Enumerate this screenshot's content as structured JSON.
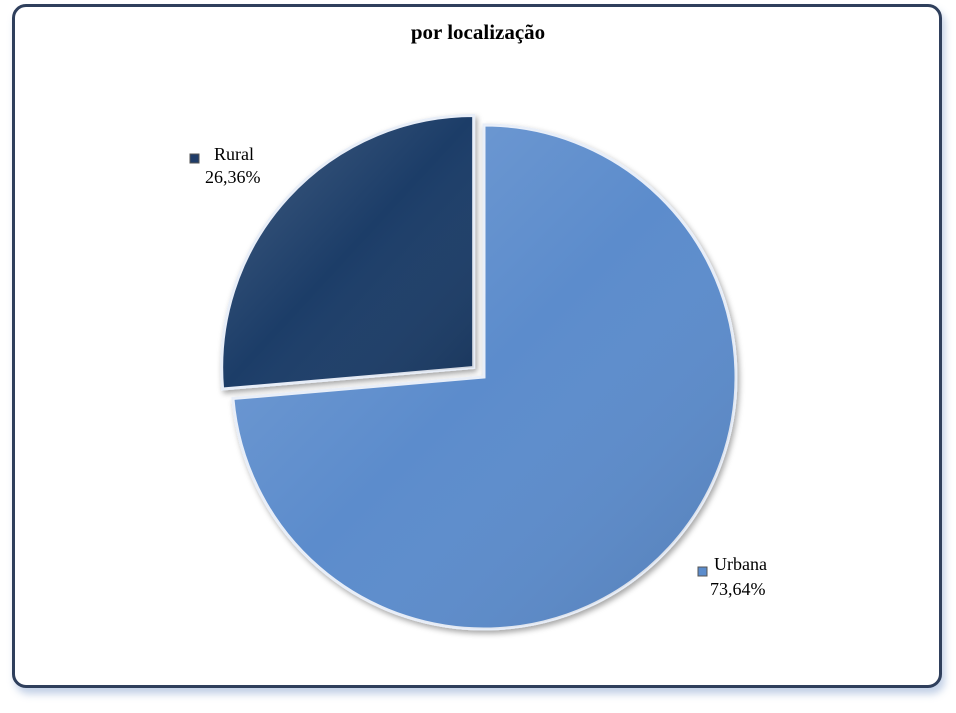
{
  "chart_data": {
    "type": "pie",
    "title": "por localização",
    "categories": [
      "Rural",
      "Urbana"
    ],
    "values": [
      26.36,
      73.64
    ],
    "value_labels": [
      "26,36%",
      "73,64%"
    ],
    "colors": [
      "#1f3c68",
      "#5b8ccc"
    ],
    "exploded": "Rural",
    "legend": "data-labels with color markers"
  }
}
